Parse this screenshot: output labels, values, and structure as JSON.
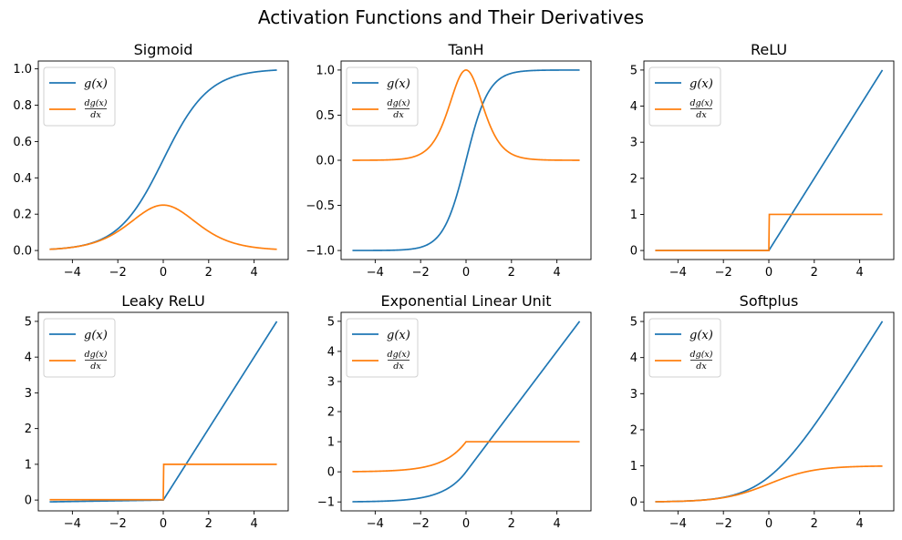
{
  "figure": {
    "title": "Activation Functions and Their Derivatives"
  },
  "legend": {
    "entry_1": "g(x)",
    "entry_2_num": "dg(x)",
    "entry_2_den": "dx"
  },
  "colors": {
    "g": "#1f77b4",
    "dg": "#ff7f0e"
  },
  "chart_data": [
    {
      "type": "line",
      "title": "Sigmoid",
      "function": "sigmoid",
      "x_range": [
        -5,
        5
      ],
      "xlim": [
        -5.5,
        5.5
      ],
      "ylim": [
        -0.0497,
        1.0433
      ],
      "x_ticks": [
        -4,
        -2,
        0,
        2,
        4
      ],
      "x_tick_labels": [
        "−4",
        "−2",
        "0",
        "2",
        "4"
      ],
      "y_ticks": [
        0,
        0.2,
        0.4,
        0.6,
        0.8,
        1.0
      ],
      "y_tick_labels": [
        "0.0",
        "0.2",
        "0.4",
        "0.6",
        "0.8",
        "1.0"
      ],
      "legend": "top-left",
      "grid": false,
      "series": [
        {
          "name": "g(x)",
          "color": "#1f77b4",
          "x": [
            -5,
            -4,
            -3,
            -2,
            -1,
            0,
            1,
            2,
            3,
            4,
            5
          ],
          "y": [
            0.0067,
            0.018,
            0.0474,
            0.1192,
            0.2689,
            0.5,
            0.7311,
            0.8808,
            0.9526,
            0.982,
            0.9933
          ]
        },
        {
          "name": "dg(x)/dx",
          "color": "#ff7f0e",
          "x": [
            -5,
            -4,
            -3,
            -2,
            -1,
            0,
            1,
            2,
            3,
            4,
            5
          ],
          "y": [
            0.0066,
            0.0177,
            0.0452,
            0.105,
            0.1966,
            0.25,
            0.1966,
            0.105,
            0.0452,
            0.0177,
            0.0066
          ]
        }
      ]
    },
    {
      "type": "line",
      "title": "TanH",
      "function": "tanh",
      "x_range": [
        -5,
        5
      ],
      "xlim": [
        -5.5,
        5.5
      ],
      "ylim": [
        -1.1,
        1.1
      ],
      "x_ticks": [
        -4,
        -2,
        0,
        2,
        4
      ],
      "x_tick_labels": [
        "−4",
        "−2",
        "0",
        "2",
        "4"
      ],
      "y_ticks": [
        -1.0,
        -0.5,
        0,
        0.5,
        1.0
      ],
      "y_tick_labels": [
        "−1.0",
        "−0.5",
        "0.0",
        "0.5",
        "1.0"
      ],
      "legend": "top-left",
      "grid": false,
      "series": [
        {
          "name": "g(x)",
          "color": "#1f77b4",
          "x": [
            -5,
            -4,
            -3,
            -2,
            -1,
            0,
            1,
            2,
            3,
            4,
            5
          ],
          "y": [
            -0.9999,
            -0.9993,
            -0.9951,
            -0.964,
            -0.7616,
            0,
            0.7616,
            0.964,
            0.9951,
            0.9993,
            0.9999
          ]
        },
        {
          "name": "dg(x)/dx",
          "color": "#ff7f0e",
          "x": [
            -5,
            -4,
            -3,
            -2,
            -1,
            0,
            1,
            2,
            3,
            4,
            5
          ],
          "y": [
            0.0002,
            0.0013,
            0.0099,
            0.0707,
            0.42,
            1.0,
            0.42,
            0.0707,
            0.0099,
            0.0013,
            0.0002
          ]
        }
      ]
    },
    {
      "type": "line",
      "title": "ReLU",
      "function": "relu",
      "x_range": [
        -5,
        5
      ],
      "xlim": [
        -5.5,
        5.5
      ],
      "ylim": [
        -0.25,
        5.25
      ],
      "x_ticks": [
        -4,
        -2,
        0,
        2,
        4
      ],
      "x_tick_labels": [
        "−4",
        "−2",
        "0",
        "2",
        "4"
      ],
      "y_ticks": [
        0,
        1,
        2,
        3,
        4,
        5
      ],
      "y_tick_labels": [
        "0",
        "1",
        "2",
        "3",
        "4",
        "5"
      ],
      "legend": "top-left",
      "grid": false,
      "series": [
        {
          "name": "g(x)",
          "color": "#1f77b4",
          "x": [
            -5,
            0,
            5
          ],
          "y": [
            0,
            0,
            5
          ]
        },
        {
          "name": "dg(x)/dx",
          "color": "#ff7f0e",
          "x": [
            -5,
            0,
            0.05,
            5
          ],
          "y": [
            0,
            0,
            1,
            1
          ]
        }
      ]
    },
    {
      "type": "line",
      "title": "Leaky ReLU",
      "function": "leaky_relu",
      "x_range": [
        -5,
        5
      ],
      "xlim": [
        -5.5,
        5.5
      ],
      "ylim": [
        -0.3025,
        5.2525
      ],
      "x_ticks": [
        -4,
        -2,
        0,
        2,
        4
      ],
      "x_tick_labels": [
        "−4",
        "−2",
        "0",
        "2",
        "4"
      ],
      "y_ticks": [
        0,
        1,
        2,
        3,
        4,
        5
      ],
      "y_tick_labels": [
        "0",
        "1",
        "2",
        "3",
        "4",
        "5"
      ],
      "legend": "top-left",
      "grid": false,
      "series": [
        {
          "name": "g(x)",
          "color": "#1f77b4",
          "x": [
            -5,
            0,
            5
          ],
          "y": [
            -0.05,
            0,
            5
          ]
        },
        {
          "name": "dg(x)/dx",
          "color": "#ff7f0e",
          "x": [
            -5,
            0,
            0.05,
            5
          ],
          "y": [
            0.01,
            0.01,
            1,
            1
          ]
        }
      ]
    },
    {
      "type": "line",
      "title": "Exponential Linear Unit",
      "function": "elu",
      "x_range": [
        -5,
        5
      ],
      "xlim": [
        -5.5,
        5.5
      ],
      "ylim": [
        -1.2966,
        5.2966
      ],
      "x_ticks": [
        -4,
        -2,
        0,
        2,
        4
      ],
      "x_tick_labels": [
        "−4",
        "−2",
        "0",
        "2",
        "4"
      ],
      "y_ticks": [
        -1,
        0,
        1,
        2,
        3,
        4,
        5
      ],
      "y_tick_labels": [
        "−1",
        "0",
        "1",
        "2",
        "3",
        "4",
        "5"
      ],
      "legend": "top-left",
      "grid": false,
      "series": [
        {
          "name": "g(x)",
          "color": "#1f77b4",
          "x": [
            -5,
            -4,
            -3,
            -2,
            -1,
            0,
            1,
            2,
            3,
            4,
            5
          ],
          "y": [
            -0.9933,
            -0.9817,
            -0.9502,
            -0.8647,
            -0.6321,
            0,
            1,
            2,
            3,
            4,
            5
          ]
        },
        {
          "name": "dg(x)/dx",
          "color": "#ff7f0e",
          "x": [
            -5,
            -4,
            -3,
            -2,
            -1,
            0,
            1,
            2,
            3,
            4,
            5
          ],
          "y": [
            0.0067,
            0.0183,
            0.0498,
            0.1353,
            0.3679,
            1,
            1,
            1,
            1,
            1,
            1
          ]
        }
      ]
    },
    {
      "type": "line",
      "title": "Softplus",
      "function": "softplus",
      "x_range": [
        -5,
        5
      ],
      "xlim": [
        -5.5,
        5.5
      ],
      "ylim": [
        -0.2466,
        5.2533
      ],
      "x_ticks": [
        -4,
        -2,
        0,
        2,
        4
      ],
      "x_tick_labels": [
        "−4",
        "−2",
        "0",
        "2",
        "4"
      ],
      "y_ticks": [
        0,
        1,
        2,
        3,
        4,
        5
      ],
      "y_tick_labels": [
        "0",
        "1",
        "2",
        "3",
        "4",
        "5"
      ],
      "legend": "top-left",
      "grid": false,
      "series": [
        {
          "name": "g(x)",
          "color": "#1f77b4",
          "x": [
            -5,
            -4,
            -3,
            -2,
            -1,
            0,
            1,
            2,
            3,
            4,
            5
          ],
          "y": [
            0.0067,
            0.0181,
            0.0486,
            0.1269,
            0.3133,
            0.6931,
            1.3133,
            2.1269,
            3.0486,
            4.0181,
            5.0067
          ]
        },
        {
          "name": "dg(x)/dx",
          "color": "#ff7f0e",
          "x": [
            -5,
            -4,
            -3,
            -2,
            -1,
            0,
            1,
            2,
            3,
            4,
            5
          ],
          "y": [
            0.0067,
            0.018,
            0.0474,
            0.1192,
            0.2689,
            0.5,
            0.7311,
            0.8808,
            0.9526,
            0.982,
            0.9933
          ]
        }
      ]
    }
  ]
}
